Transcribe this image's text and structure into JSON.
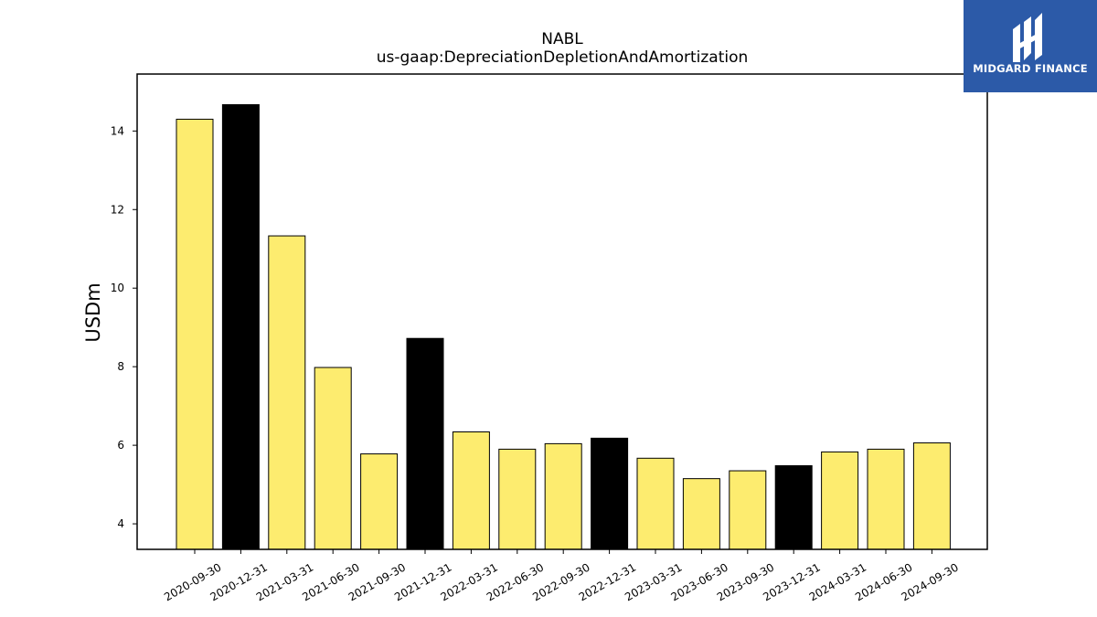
{
  "logo": {
    "text": "MIDGARD FINANCE",
    "background": "#2c5aa8"
  },
  "colors": {
    "bar_default": "#fdec6f",
    "bar_highlight": "#000000",
    "bar_edge": "#000000"
  },
  "chart_data": {
    "type": "bar",
    "title": "NABL",
    "subtitle": "us-gaap:DepreciationDepletionAndAmortization",
    "xlabel": "",
    "ylabel": "USDm",
    "ylim": [
      3.35,
      15.45
    ],
    "yticks": [
      4,
      6,
      8,
      10,
      12,
      14
    ],
    "grid": false,
    "categories": [
      "2020-09-30",
      "2020-12-31",
      "2021-03-31",
      "2021-06-30",
      "2021-09-30",
      "2021-12-31",
      "2022-03-31",
      "2022-06-30",
      "2022-09-30",
      "2022-12-31",
      "2023-03-31",
      "2023-06-30",
      "2023-09-30",
      "2023-12-31",
      "2024-03-31",
      "2024-06-30",
      "2024-09-30"
    ],
    "values": [
      14.3,
      14.67,
      11.33,
      7.98,
      5.78,
      8.72,
      6.34,
      5.9,
      6.04,
      6.18,
      5.67,
      5.15,
      5.35,
      5.48,
      5.83,
      5.9,
      6.06
    ],
    "highlighted": [
      "2020-12-31",
      "2021-12-31",
      "2022-12-31",
      "2023-12-31"
    ]
  }
}
